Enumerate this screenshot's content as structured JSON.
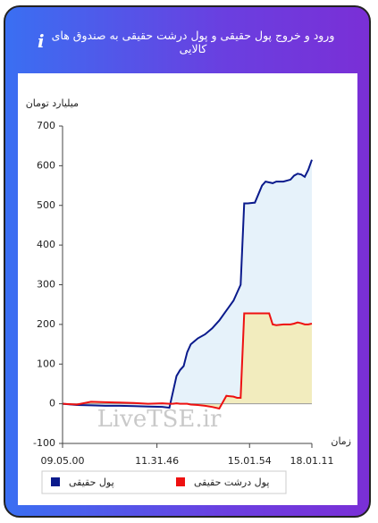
{
  "chart_data": {
    "type": "line",
    "title": "ورود و خروج پول حقیقی و پول درشت حقیقی به صندوق های کالایی",
    "y_label": "میلیارد تومان",
    "x_label": "زمان",
    "watermark": "LiveTSE.ir",
    "x": [
      0,
      4,
      8,
      12,
      16,
      20,
      24,
      28,
      30,
      31,
      32,
      33,
      34,
      35,
      36,
      38,
      40,
      42,
      44,
      46,
      48,
      49,
      50,
      51,
      52,
      54,
      56,
      57,
      58,
      59,
      60,
      62,
      64,
      65,
      66,
      67,
      68,
      69,
      70
    ],
    "series": [
      {
        "name": "پول حقیقی",
        "color": "#0a1a8c",
        "fill": "#e6f2fa",
        "values": [
          0,
          -3,
          -4,
          -5,
          -5,
          -6,
          -7,
          -8,
          -10,
          30,
          70,
          85,
          95,
          130,
          150,
          165,
          175,
          190,
          210,
          235,
          260,
          280,
          300,
          505,
          505,
          507,
          550,
          560,
          558,
          556,
          560,
          560,
          565,
          575,
          580,
          578,
          572,
          590,
          615
        ]
      },
      {
        "name": "پول درشت حقیقی",
        "color": "#ee1111",
        "fill": "#f2ecbe",
        "values": [
          0,
          -2,
          5,
          4,
          3,
          2,
          0,
          1,
          0,
          0,
          1,
          0,
          0,
          0,
          -2,
          -3,
          -5,
          -8,
          -12,
          20,
          18,
          15,
          15,
          228,
          228,
          228,
          228,
          228,
          228,
          200,
          198,
          200,
          200,
          202,
          205,
          203,
          200,
          200,
          202
        ]
      }
    ],
    "xlim": [
      0,
      70
    ],
    "xticks": [
      {
        "value": 0,
        "label": "09.05.00"
      },
      {
        "value": 26.5,
        "label": "11.31.46"
      },
      {
        "value": 52.5,
        "label": "15.01.54"
      },
      {
        "value": 70,
        "label": "18.01.11"
      }
    ],
    "ylim": [
      -100,
      700
    ],
    "yticks": [
      -100,
      0,
      100,
      200,
      300,
      400,
      500,
      600,
      700
    ]
  }
}
